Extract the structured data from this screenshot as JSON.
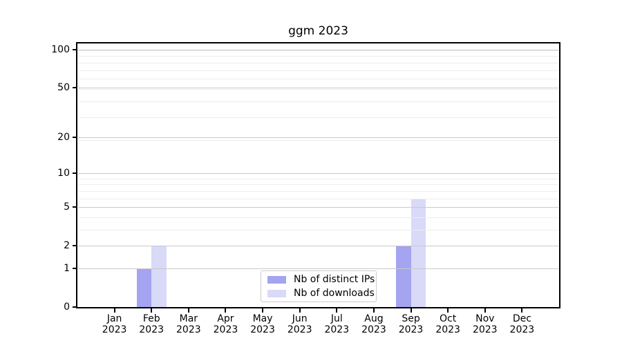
{
  "title": "ggm 2023",
  "chart_data": {
    "type": "bar",
    "title": "ggm 2023",
    "xlabel": "",
    "ylabel": "",
    "categories": [
      "Jan",
      "Feb",
      "Mar",
      "Apr",
      "May",
      "Jun",
      "Jul",
      "Aug",
      "Sep",
      "Oct",
      "Nov",
      "Dec"
    ],
    "x_year_label": "2023",
    "series": [
      {
        "name": "Nb of distinct IPs",
        "color": "#a4a4f1",
        "values": [
          0,
          1,
          0,
          0,
          0,
          0,
          0,
          0,
          2,
          0,
          0,
          0
        ]
      },
      {
        "name": "Nb of downloads",
        "color": "#d9d9f8",
        "values": [
          0,
          2,
          0,
          0,
          0,
          0,
          0,
          0,
          6,
          0,
          0,
          0
        ]
      }
    ],
    "yscale": "log1p",
    "ylim": [
      0,
      112
    ],
    "ytick_values": [
      0,
      1,
      2,
      5,
      10,
      20,
      50,
      100
    ],
    "ytick_labels": [
      "0",
      "1",
      "2",
      "5",
      "10",
      "20",
      "50",
      "100"
    ],
    "minor_gridline_values": [
      3,
      4,
      6,
      7,
      8,
      9,
      19,
      29,
      39,
      49,
      59,
      69,
      79,
      89,
      99
    ],
    "grid": "on",
    "legend_position": "inside lower center"
  },
  "colors": {
    "bar_distinct_ips": "#a4a4f1",
    "bar_downloads": "#d9d9f8",
    "major_grid": "#c9c9c9",
    "minor_grid": "#ededed",
    "axis": "#000000",
    "legend_border": "#cccccc",
    "background": "#ffffff"
  }
}
